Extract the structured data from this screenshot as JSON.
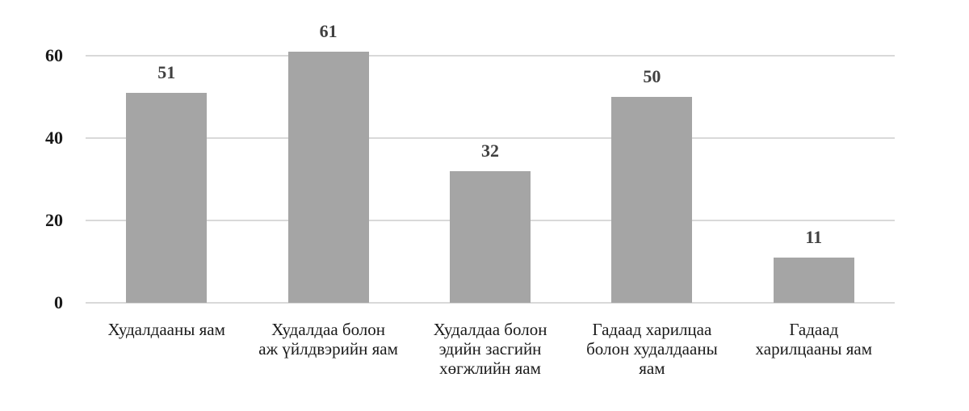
{
  "chart_data": {
    "type": "bar",
    "title": "",
    "xlabel": "",
    "ylabel": "",
    "categories": [
      "Худалдааны яам",
      "Худалдаа болон аж үйлдвэрийн яам",
      "Худалдаа болон эдийн засгийн хөгжлийн яам",
      "Гадаад харилцаа болон худалдааны яам",
      "Гадаад харилцааны яам"
    ],
    "category_lines": [
      "Худалдааны яам",
      "Худалдаа болон\nаж үйлдвэрийн яам",
      "Худалдаа болон\nэдийн засгийн\nхөгжлийн яам",
      "Гадаад харилцаа\nболон худалдааны\nяам",
      "Гадаад\nхарилцааны яам"
    ],
    "values": [
      51,
      61,
      32,
      50,
      11
    ],
    "data_labels": [
      "51",
      "61",
      "32",
      "50",
      "11"
    ],
    "yticks": [
      "0",
      "20",
      "40",
      "60"
    ],
    "ylim": [
      0,
      60
    ],
    "grid": true,
    "legend": "none",
    "colors": {
      "bar": "#a5a5a5",
      "grid": "#d9d9d9",
      "data_label": "#404040"
    }
  }
}
